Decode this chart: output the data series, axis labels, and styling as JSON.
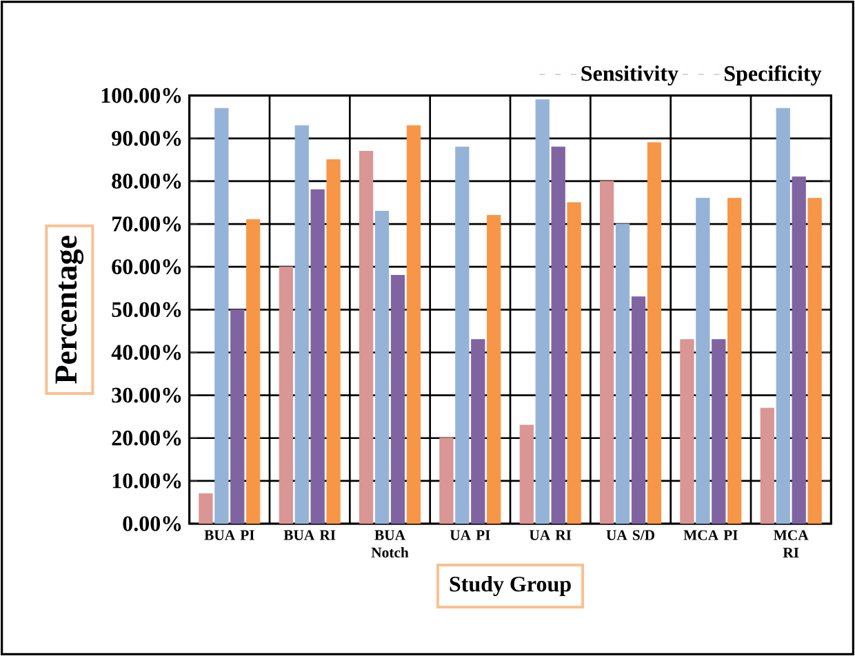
{
  "chart_data": {
    "type": "bar",
    "xlabel": "Study Group",
    "ylabel": "Percentage",
    "categories": [
      "BUA PI",
      "BUA RI",
      "BUA Notch",
      "UA PI",
      "UA RI",
      "UA S/D",
      "MCA PI",
      "MCA RI"
    ],
    "series": [
      {
        "name": "Sensitivity",
        "color": "#d99694",
        "values": [
          7,
          60,
          87,
          20,
          23,
          80,
          43,
          27
        ]
      },
      {
        "name": "Specificity",
        "color": "#95b3d7",
        "values": [
          97,
          93,
          73,
          88,
          99,
          70,
          76,
          97
        ]
      },
      {
        "color": "#8064a2",
        "values": [
          50,
          78,
          58,
          43,
          88,
          53,
          43,
          81
        ]
      },
      {
        "color": "#f79646",
        "values": [
          71,
          85,
          93,
          72,
          75,
          89,
          76,
          76
        ]
      }
    ],
    "ylim": [
      0,
      100
    ],
    "yticks": [
      {
        "value": 0,
        "label": "0.00%"
      },
      {
        "value": 10,
        "label": "10.00%"
      },
      {
        "value": 20,
        "label": "20.00%"
      },
      {
        "value": 30,
        "label": "30.00%"
      },
      {
        "value": 40,
        "label": "40.00%"
      },
      {
        "value": 50,
        "label": "50.00%"
      },
      {
        "value": 60,
        "label": "60.00%"
      },
      {
        "value": 70,
        "label": "70.00%"
      },
      {
        "value": 80,
        "label": "80.00%"
      },
      {
        "value": 90,
        "label": "90.00%"
      },
      {
        "value": 100,
        "label": "100.00%"
      }
    ],
    "grid": true,
    "legend": "top right"
  }
}
